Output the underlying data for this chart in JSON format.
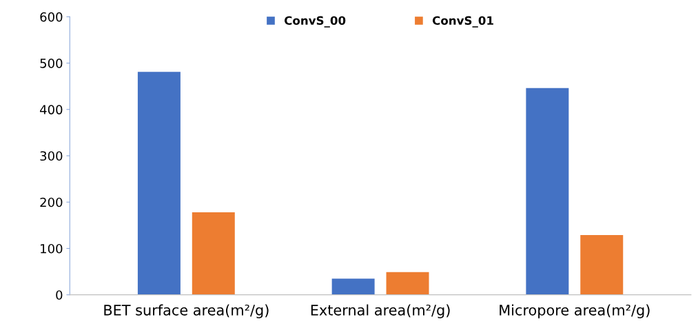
{
  "chart_data": {
    "type": "bar",
    "categories": [
      "BET surface area(m²/g)",
      "External area(m²/g)",
      "Micropore area(m²/g)"
    ],
    "series": [
      {
        "name": "ConvS_00",
        "color": "#4472c4",
        "values": [
          481,
          35,
          446
        ]
      },
      {
        "name": "ConvS_01",
        "color": "#ed7d31",
        "values": [
          178,
          49,
          129
        ]
      }
    ],
    "ylim": [
      0,
      600
    ],
    "yticks": [
      0,
      100,
      200,
      300,
      400,
      500,
      600
    ],
    "grid": false,
    "legend": "top"
  }
}
